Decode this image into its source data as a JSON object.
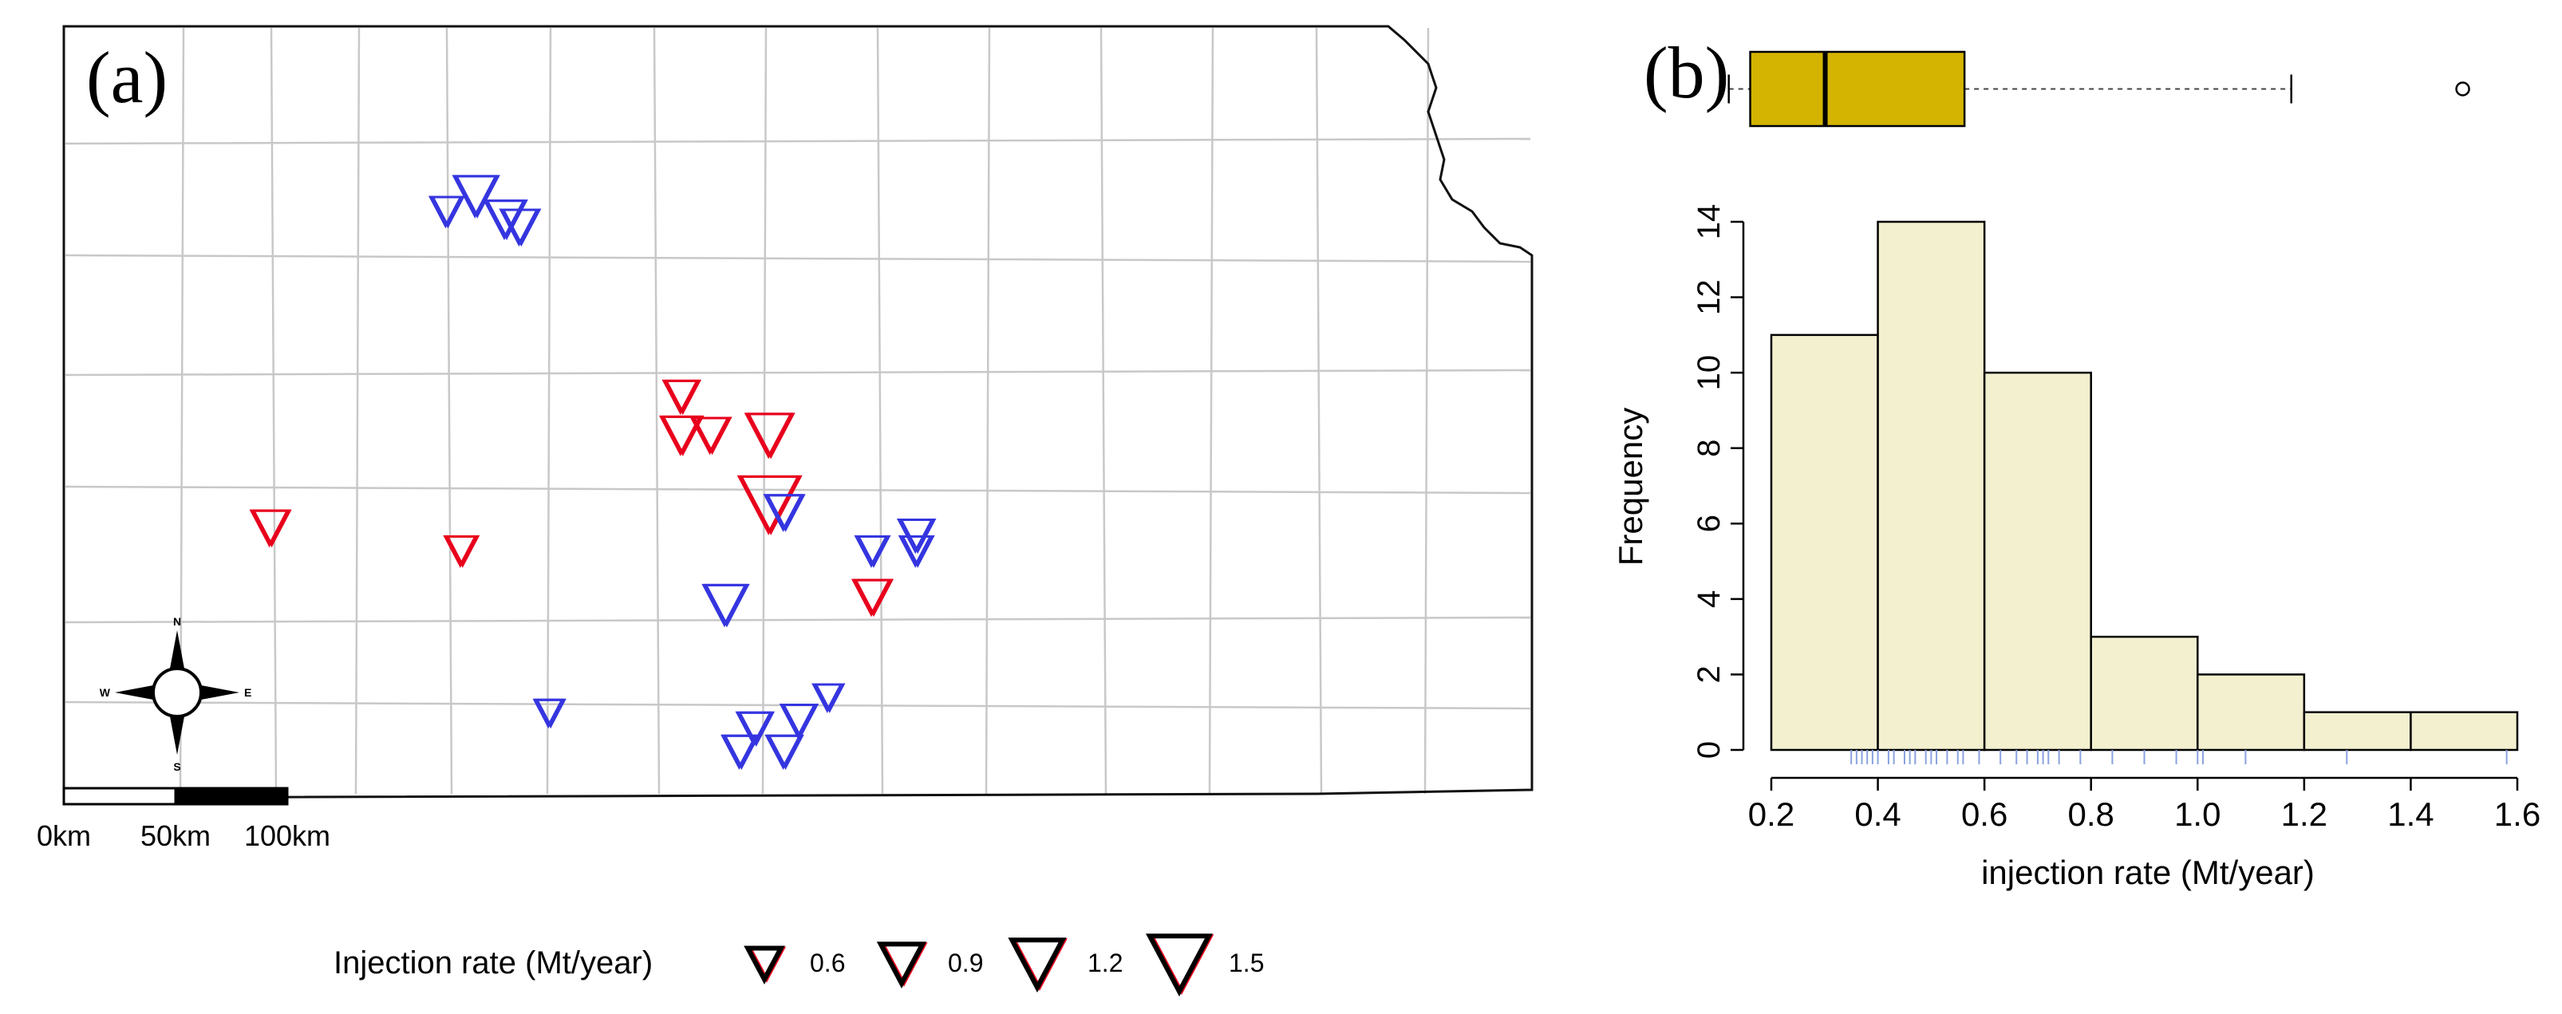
{
  "panel_a": {
    "label": "(a)",
    "scale_labels": [
      "0km",
      "50km",
      "100km"
    ],
    "compass": {
      "n": "N",
      "s": "S",
      "e": "E",
      "w": "W"
    },
    "legend": {
      "title": "Injection rate (Mt/year)",
      "entries": [
        "0.6",
        "0.9",
        "1.2",
        "1.5"
      ]
    },
    "colors": {
      "red": "#e8001c",
      "blue": "#3535e0",
      "county_line": "#c8c8c8",
      "border": "#111111"
    }
  },
  "panel_b": {
    "label": "(b)",
    "colors": {
      "box_fill": "#d4b400",
      "bar_fill": "#f3f0d0",
      "rug": "#8aa2e0"
    }
  },
  "chart_data": [
    {
      "type": "scatter",
      "panel": "(a)",
      "note_symbols": "map of injection sites; triangle size encodes injection rate",
      "points": [
        {
          "x": 0.28,
          "y": 0.78,
          "rate": 0.9,
          "color": "blue"
        },
        {
          "x": 0.26,
          "y": 0.76,
          "rate": 0.5,
          "color": "blue"
        },
        {
          "x": 0.3,
          "y": 0.75,
          "rate": 0.8,
          "color": "blue"
        },
        {
          "x": 0.31,
          "y": 0.74,
          "rate": 0.7,
          "color": "blue"
        },
        {
          "x": 0.42,
          "y": 0.52,
          "rate": 0.6,
          "color": "red"
        },
        {
          "x": 0.42,
          "y": 0.47,
          "rate": 0.8,
          "color": "red"
        },
        {
          "x": 0.44,
          "y": 0.47,
          "rate": 0.7,
          "color": "red"
        },
        {
          "x": 0.48,
          "y": 0.47,
          "rate": 1.0,
          "color": "red"
        },
        {
          "x": 0.48,
          "y": 0.38,
          "rate": 1.5,
          "color": "red"
        },
        {
          "x": 0.49,
          "y": 0.37,
          "rate": 0.7,
          "color": "blue"
        },
        {
          "x": 0.14,
          "y": 0.35,
          "rate": 0.7,
          "color": "red"
        },
        {
          "x": 0.27,
          "y": 0.32,
          "rate": 0.5,
          "color": "red"
        },
        {
          "x": 0.55,
          "y": 0.32,
          "rate": 0.5,
          "color": "blue"
        },
        {
          "x": 0.58,
          "y": 0.34,
          "rate": 0.6,
          "color": "blue"
        },
        {
          "x": 0.58,
          "y": 0.32,
          "rate": 0.5,
          "color": "blue"
        },
        {
          "x": 0.55,
          "y": 0.26,
          "rate": 0.7,
          "color": "red"
        },
        {
          "x": 0.45,
          "y": 0.25,
          "rate": 0.9,
          "color": "blue"
        },
        {
          "x": 0.33,
          "y": 0.11,
          "rate": 0.4,
          "color": "blue"
        },
        {
          "x": 0.47,
          "y": 0.09,
          "rate": 0.6,
          "color": "blue"
        },
        {
          "x": 0.46,
          "y": 0.06,
          "rate": 0.6,
          "color": "blue"
        },
        {
          "x": 0.49,
          "y": 0.06,
          "rate": 0.6,
          "color": "blue"
        },
        {
          "x": 0.5,
          "y": 0.1,
          "rate": 0.6,
          "color": "blue"
        },
        {
          "x": 0.52,
          "y": 0.13,
          "rate": 0.4,
          "color": "blue"
        }
      ]
    },
    {
      "type": "bar",
      "panel": "(b)",
      "histogram": true,
      "bin_edges": [
        0.2,
        0.4,
        0.6,
        0.8,
        1.0,
        1.2,
        1.4,
        1.6
      ],
      "values": [
        11,
        14,
        10,
        3,
        2,
        1,
        1
      ],
      "xlabel": "injection rate (Mt/year)",
      "ylabel": "Frequency",
      "xlim": [
        0.2,
        1.6
      ],
      "ylim": [
        0,
        14
      ],
      "xticks": [
        "0.2",
        "0.4",
        "0.6",
        "0.8",
        "1.0",
        "1.2",
        "1.4",
        "1.6"
      ],
      "yticks": [
        "0",
        "2",
        "4",
        "6",
        "8",
        "10",
        "12",
        "14"
      ],
      "boxplot": {
        "min": 0.21,
        "q1": 0.25,
        "median": 0.39,
        "q3": 0.65,
        "whisker_high": 1.26,
        "outliers": [
          1.58
        ]
      },
      "rug": [
        0.35,
        0.36,
        0.37,
        0.38,
        0.39,
        0.4,
        0.42,
        0.43,
        0.45,
        0.46,
        0.47,
        0.49,
        0.5,
        0.51,
        0.53,
        0.55,
        0.56,
        0.59,
        0.63,
        0.66,
        0.68,
        0.7,
        0.71,
        0.72,
        0.74,
        0.78,
        0.84,
        0.9,
        0.96,
        1.0,
        1.01,
        1.09,
        1.28,
        1.58
      ]
    }
  ]
}
